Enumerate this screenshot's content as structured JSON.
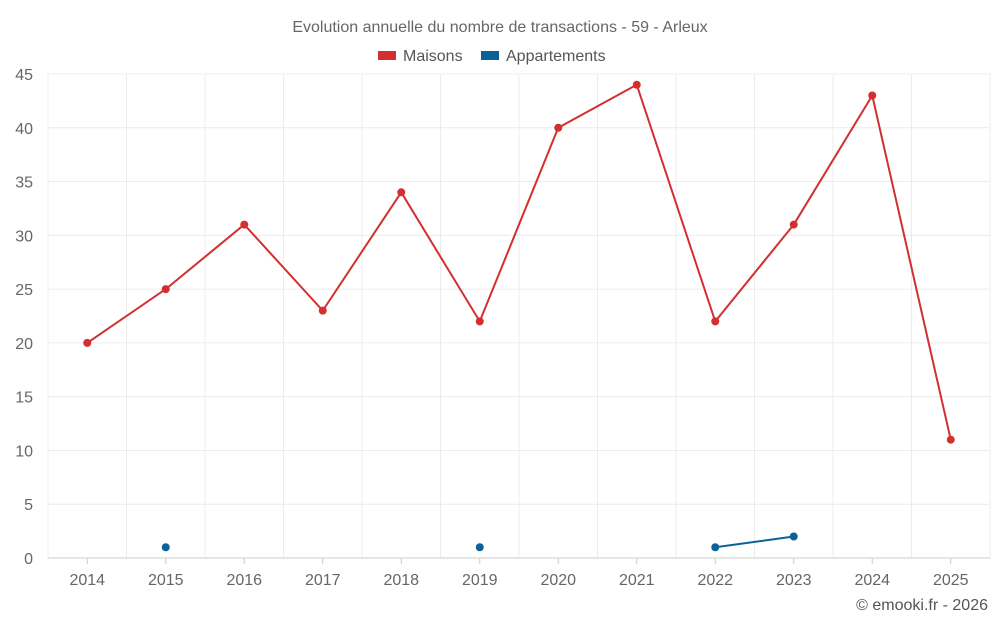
{
  "chart_data": {
    "type": "line",
    "title": "Evolution annuelle du nombre de transactions - 59 - Arleux",
    "categories": [
      "2014",
      "2015",
      "2016",
      "2017",
      "2018",
      "2019",
      "2020",
      "2021",
      "2022",
      "2023",
      "2024",
      "2025"
    ],
    "series": [
      {
        "name": "Maisons",
        "color": "#d32f2f",
        "values": [
          20,
          25,
          31,
          23,
          34,
          22,
          40,
          44,
          22,
          31,
          43,
          11
        ]
      },
      {
        "name": "Appartements",
        "color": "#0d6199",
        "values": [
          null,
          1,
          null,
          null,
          null,
          1,
          null,
          null,
          1,
          2,
          null,
          null
        ]
      }
    ],
    "ylim": [
      0,
      45
    ],
    "yticks": [
      0,
      5,
      10,
      15,
      20,
      25,
      30,
      35,
      40,
      45
    ],
    "grid": true,
    "legend_position": "top-center",
    "xlabel": "",
    "ylabel": ""
  },
  "credit": "© emooki.fr - 2026"
}
